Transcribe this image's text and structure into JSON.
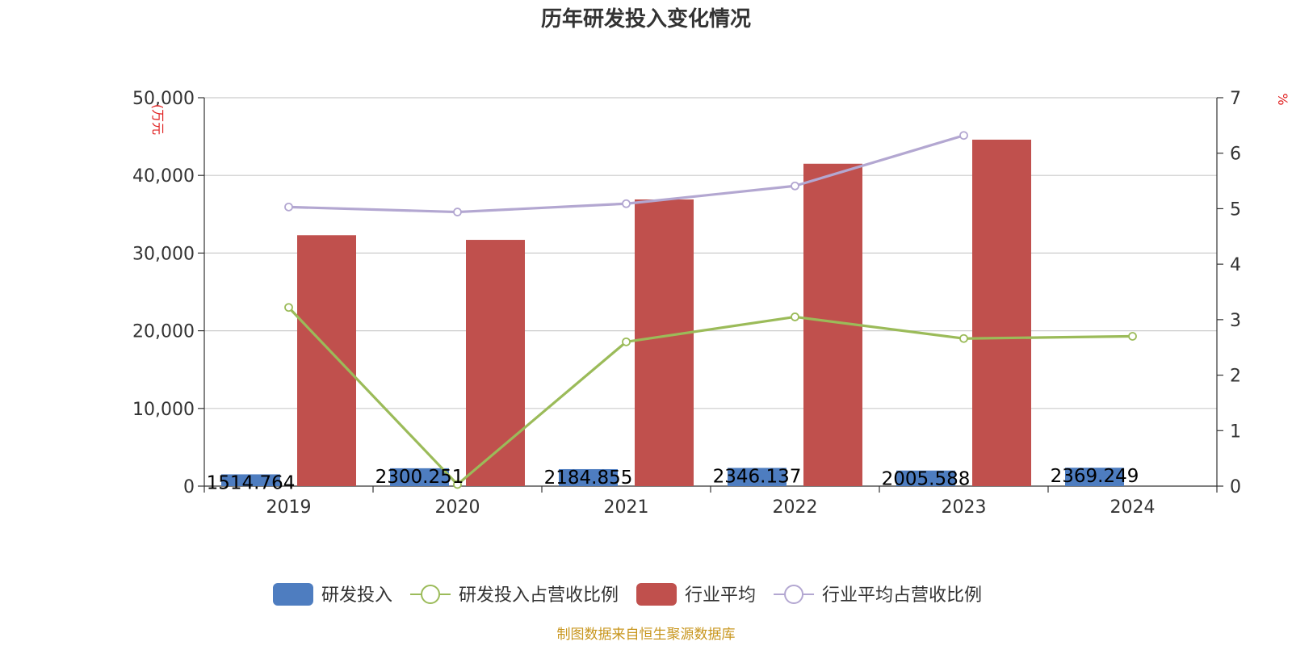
{
  "chart_data": {
    "type": "bar",
    "title": "历年研发投入变化情况",
    "categories": [
      "2019",
      "2020",
      "2021",
      "2022",
      "2023",
      "2024"
    ],
    "y_left": {
      "unit": "(万元",
      "ylim": [
        0,
        50000
      ],
      "ticks": [
        "0",
        "10,000",
        "20,000",
        "30,000",
        "40,000",
        "50,000"
      ],
      "tick_values": [
        0,
        10000,
        20000,
        30000,
        40000,
        50000
      ]
    },
    "y_right": {
      "unit": "%",
      "ylim": [
        0,
        7
      ],
      "ticks": [
        "0",
        "1",
        "2",
        "3",
        "4",
        "5",
        "6",
        "7"
      ],
      "tick_values": [
        0,
        1,
        2,
        3,
        4,
        5,
        6,
        7
      ]
    },
    "series": [
      {
        "name": "研发投入",
        "kind": "bar",
        "axis": "left",
        "color": "#4e7dc0",
        "values": [
          1514.764,
          2300.251,
          2184.855,
          2346.137,
          2005.588,
          2369.249
        ],
        "labels": [
          "1514.764",
          "2300.251",
          "2184.855",
          "2346.137",
          "2005.588",
          "2369.249"
        ]
      },
      {
        "name": "研发投入占营收比例",
        "kind": "line",
        "axis": "right",
        "color": "#9bbb59",
        "values": [
          3.22,
          0.03,
          2.6,
          3.05,
          2.66,
          2.7
        ]
      },
      {
        "name": "行业平均",
        "kind": "bar",
        "axis": "left",
        "color": "#c0504d",
        "values": [
          32300,
          31700,
          36900,
          41500,
          44600,
          null
        ]
      },
      {
        "name": "行业平均占营收比例",
        "kind": "line",
        "axis": "right",
        "color": "#b3a7d1",
        "values": [
          5.03,
          4.94,
          5.09,
          5.41,
          6.32,
          null
        ]
      }
    ],
    "grid": true,
    "legend_position": "bottom"
  },
  "source_text": "制图数据来自恒生聚源数据库"
}
